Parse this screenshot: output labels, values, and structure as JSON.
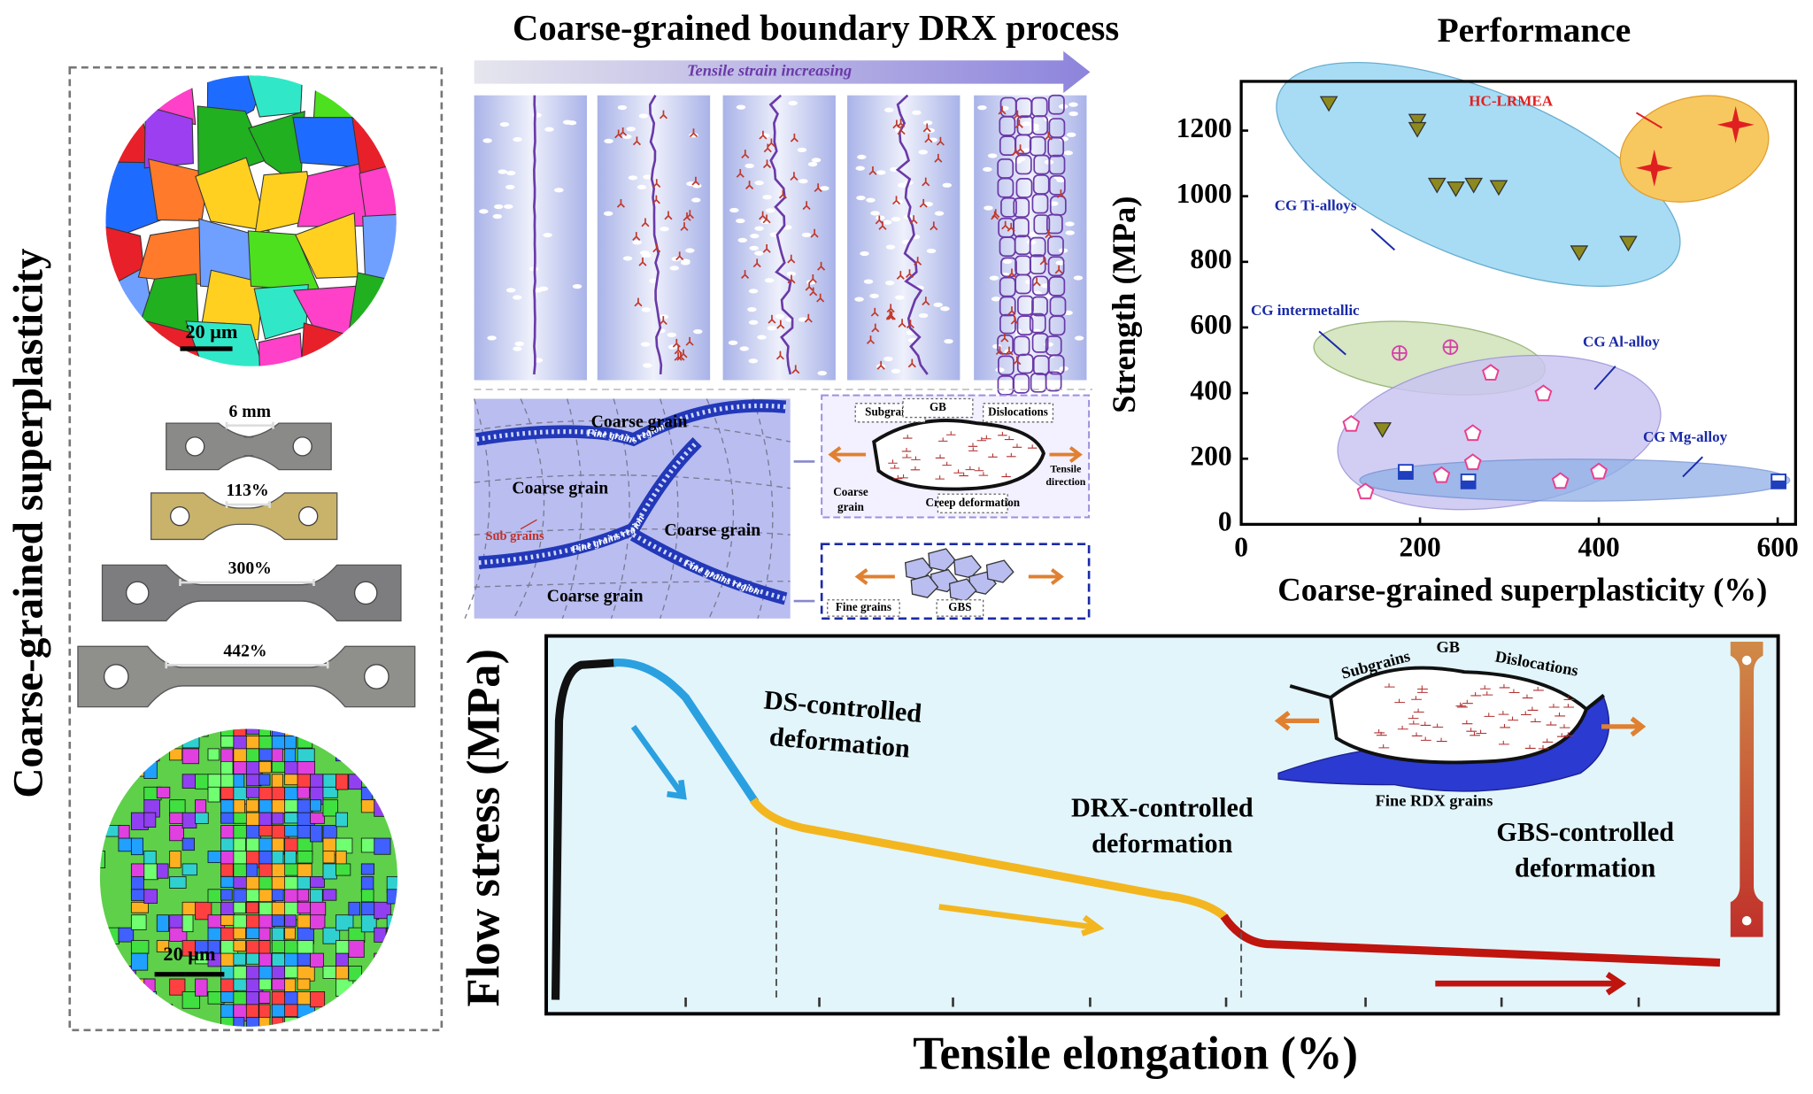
{
  "left_panel": {
    "title": "Coarse-grained superplasticity",
    "scale_bars": [
      "20 μm",
      "20 μm"
    ],
    "specimen_labels": [
      "6 mm",
      "113%",
      "300%",
      "442%"
    ]
  },
  "drx_panel": {
    "title": "Coarse-grained boundary DRX process",
    "arrow_label": "Tensile strain increasing",
    "schematic_labels": [
      "Coarse grain",
      "Coarse grain",
      "Coarse grain",
      "Coarse grain",
      "Sub grains"
    ],
    "band_labels": [
      "Fine grains region",
      "Fine grains region",
      "Fine grains region"
    ],
    "creep_box": {
      "labels": [
        "Subgrains",
        "GB",
        "Dislocations",
        "Creep deformation"
      ],
      "tensile_direction": [
        "Tensile",
        "direction"
      ],
      "coarse_grain": [
        "Coarse",
        "grain"
      ]
    },
    "gbs_box": {
      "labels": [
        "Fine grains",
        "GBS"
      ]
    }
  },
  "chart_data": {
    "type": "scatter",
    "title": "Performance",
    "xlabel": "Coarse-grained superplasticity (%)",
    "ylabel": "Strength (MPa)",
    "xlim": [
      0,
      620
    ],
    "ylim": [
      0,
      1350
    ],
    "xticks": [
      0,
      200,
      400,
      600
    ],
    "yticks": [
      0,
      200,
      400,
      600,
      800,
      1000,
      1200
    ],
    "series": [
      {
        "name": "CG Ti-alloys",
        "color": "#8c8a1e",
        "marker": "triangle",
        "x": [
          98,
          197,
          197,
          219,
          240,
          260,
          288,
          378,
          433,
          158
        ],
        "values": [
          1282,
          1228,
          1203,
          1033,
          1022,
          1033,
          1026,
          827,
          856,
          288
        ]
      },
      {
        "name": "CG intermetallic",
        "color": "#d63fa8",
        "marker": "circle-plus",
        "x": [
          177,
          234
        ],
        "values": [
          522,
          540
        ]
      },
      {
        "name": "CG Al-alloy",
        "color": "#e8408f",
        "marker": "pentagon",
        "x": [
          123,
          279,
          338,
          259,
          259,
          224,
          139,
          357,
          400
        ],
        "values": [
          305,
          461,
          398,
          277,
          188,
          149,
          99,
          131,
          160
        ]
      },
      {
        "name": "CG Mg-alloy",
        "color": "#1f3fbf",
        "marker": "half-square",
        "x": [
          184,
          254,
          601
        ],
        "values": [
          160,
          131,
          131
        ]
      },
      {
        "name": "HC-LRMEA",
        "color": "#e02020",
        "marker": "star",
        "x": [
          462,
          553
        ],
        "values": [
          1086,
          1218
        ]
      }
    ]
  },
  "flow_panel": {
    "ylabel": "Flow stress (MPa)",
    "xlabel": "Tensile elongation (%)",
    "stages": [
      [
        "DS-controlled",
        "deformation"
      ],
      [
        "DRX-controlled",
        "deformation"
      ],
      [
        "GBS-controlled",
        "deformation"
      ]
    ],
    "inset_labels": [
      "Subgrains",
      "GB",
      "Dislocations",
      "Fine RDX grains"
    ]
  }
}
